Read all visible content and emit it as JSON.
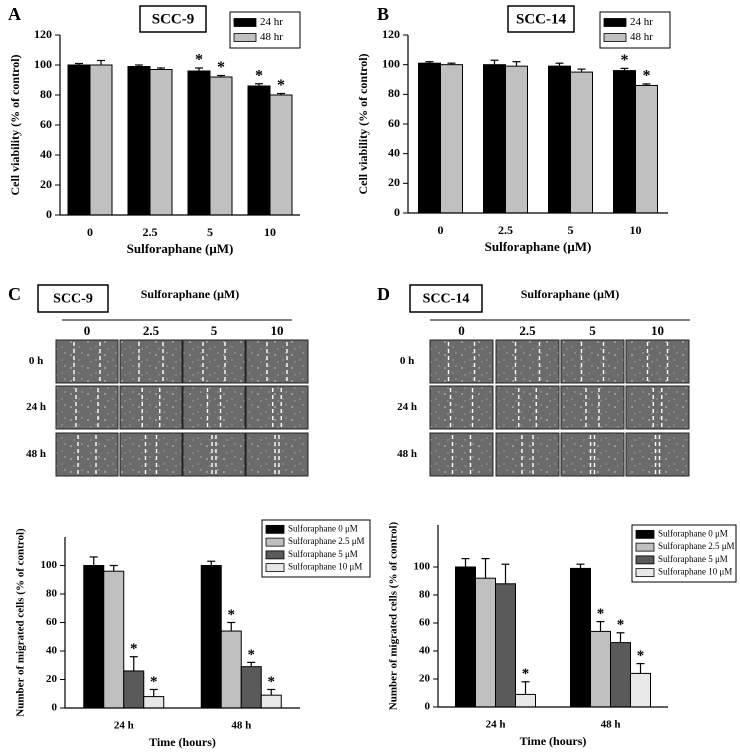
{
  "chart_data": [
    {
      "type": "bar",
      "panel": "A",
      "title": "SCC-9",
      "x_label": "Sulforaphane (μM)",
      "y_label": "Cell viability (% of control)",
      "categories": [
        "0",
        "2.5",
        "5",
        "10"
      ],
      "series": [
        {
          "name": "24 hr",
          "color": "#000000",
          "values": [
            100,
            99,
            96,
            86
          ],
          "errors": [
            1,
            1,
            2,
            1.5
          ],
          "significance": [
            null,
            null,
            "*",
            "*"
          ]
        },
        {
          "name": "48 hr",
          "color": "#c0c0c0",
          "values": [
            100,
            97,
            92,
            80
          ],
          "errors": [
            3,
            1,
            1,
            1
          ],
          "significance": [
            null,
            null,
            "*",
            "*"
          ]
        }
      ],
      "ylim": [
        0,
        120
      ],
      "yticks": [
        0,
        20,
        40,
        60,
        80,
        100,
        120
      ],
      "grid": false
    },
    {
      "type": "bar",
      "panel": "B",
      "title": "SCC-14",
      "x_label": "Sulforaphane (μM)",
      "y_label": "Cell viability (% of control)",
      "categories": [
        "0",
        "2.5",
        "5",
        "10"
      ],
      "series": [
        {
          "name": "24 hr",
          "color": "#000000",
          "values": [
            101,
            100,
            99,
            96
          ],
          "errors": [
            1,
            3,
            2,
            1.5
          ],
          "significance": [
            null,
            null,
            null,
            "*"
          ]
        },
        {
          "name": "48 hr",
          "color": "#c0c0c0",
          "values": [
            100,
            99,
            95,
            86
          ],
          "errors": [
            1,
            3,
            2,
            1
          ],
          "significance": [
            null,
            null,
            null,
            "*"
          ]
        }
      ],
      "ylim": [
        0,
        120
      ],
      "yticks": [
        0,
        20,
        40,
        60,
        80,
        100,
        120
      ],
      "grid": false
    },
    {
      "type": "bar",
      "x_label": "Time (hours)",
      "y_label": "Number of migrated cells (% of control)",
      "categories": [
        "24 h",
        "48 h"
      ],
      "series": [
        {
          "name": "Sulforaphane  0 μM",
          "color": "#000000",
          "values": [
            100,
            100
          ],
          "errors": [
            6,
            3
          ],
          "significance": [
            null,
            null
          ]
        },
        {
          "name": "Sulforaphane 2.5 μM",
          "color": "#c0c0c0",
          "values": [
            96,
            54
          ],
          "errors": [
            4,
            6
          ],
          "significance": [
            null,
            "*"
          ]
        },
        {
          "name": "Sulforaphane  5 μM",
          "color": "#5a5a5a",
          "values": [
            26,
            29
          ],
          "errors": [
            10,
            3
          ],
          "significance": [
            "*",
            "*"
          ]
        },
        {
          "name": "Sulforaphane 10 μM",
          "color": "#e8e8e8",
          "values": [
            8,
            9
          ],
          "errors": [
            5,
            4
          ],
          "significance": [
            "*",
            "*"
          ]
        }
      ],
      "ylim": [
        0,
        120
      ],
      "yticks": [
        0,
        20,
        40,
        60,
        80,
        100
      ],
      "grid": false
    },
    {
      "type": "bar",
      "x_label": "Time (hours)",
      "y_label": "Number of migrated cells (% of control)",
      "categories": [
        "24 h",
        "48 h"
      ],
      "series": [
        {
          "name": "Sulforaphane  0 μM",
          "color": "#000000",
          "values": [
            100,
            99
          ],
          "errors": [
            6,
            3
          ],
          "significance": [
            null,
            null
          ]
        },
        {
          "name": "Sulforaphane 2.5 μM",
          "color": "#c0c0c0",
          "values": [
            92,
            54
          ],
          "errors": [
            14,
            7
          ],
          "significance": [
            null,
            "*"
          ]
        },
        {
          "name": "Sulforaphane  5 μM",
          "color": "#5a5a5a",
          "values": [
            88,
            46
          ],
          "errors": [
            14,
            7
          ],
          "significance": [
            null,
            "*"
          ]
        },
        {
          "name": "Sulforaphane 10 μM",
          "color": "#e8e8e8",
          "values": [
            9,
            24
          ],
          "errors": [
            9,
            7
          ],
          "significance": [
            "*",
            "*"
          ]
        }
      ],
      "ylim": [
        0,
        130
      ],
      "yticks": [
        0,
        20,
        40,
        60,
        80,
        100
      ],
      "grid": false
    }
  ],
  "image_panels": [
    {
      "panel": "C",
      "cell_line": "SCC-9",
      "treatment_label": "Sulforaphane (μM)",
      "columns": [
        "0",
        "2.5",
        "5",
        "10"
      ],
      "rows": [
        "0 h",
        "24 h",
        "48 h"
      ]
    },
    {
      "panel": "D",
      "cell_line": "SCC-14",
      "treatment_label": "Sulforaphane (μM)",
      "columns": [
        "0",
        "2.5",
        "5",
        "10"
      ],
      "rows": [
        "0 h",
        "24 h",
        "48 h"
      ]
    }
  ]
}
